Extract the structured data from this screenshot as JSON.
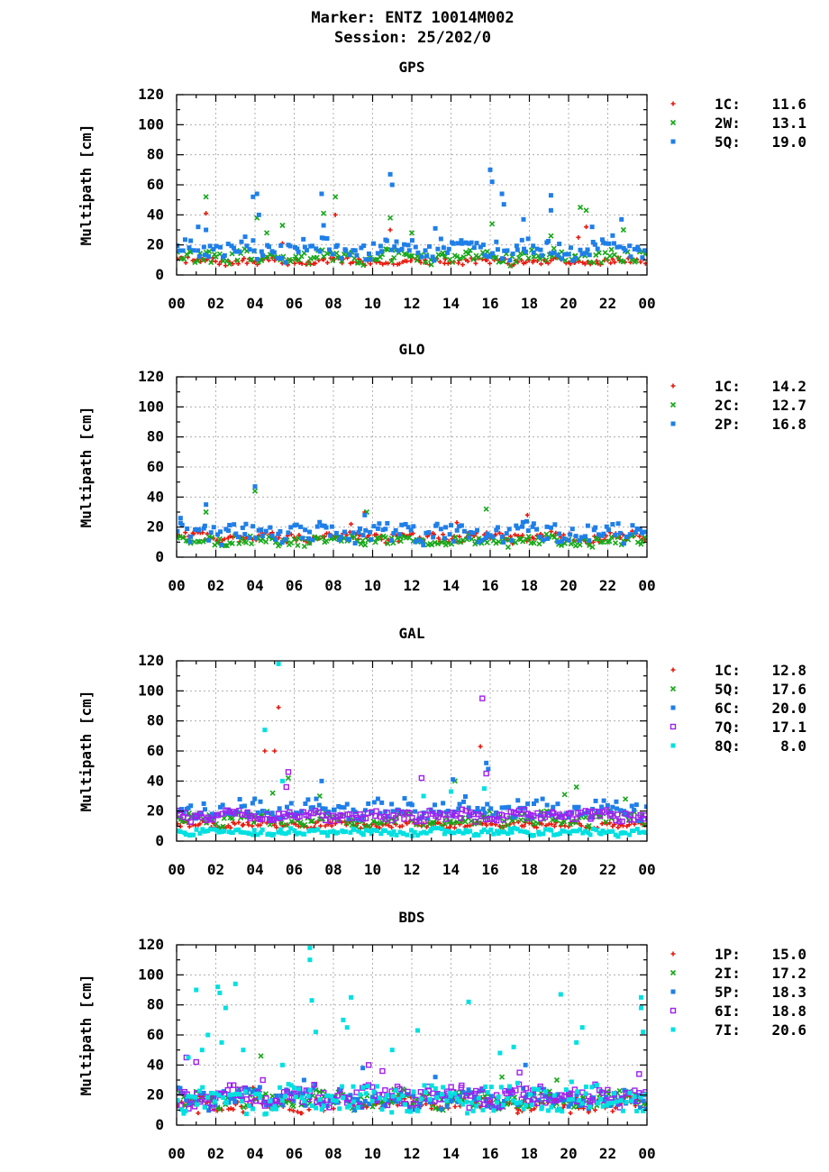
{
  "header": {
    "line1": "Marker: ENTZ 10014M002",
    "line2": "Session: 25/202/0"
  },
  "chart_data": [
    {
      "type": "scatter",
      "title": "GPS",
      "ylabel": "Multipath [cm]",
      "ylim": [
        0,
        120
      ],
      "yticks": [
        "0",
        "20",
        "40",
        "60",
        "80",
        "100",
        "120"
      ],
      "xlim": [
        0,
        24
      ],
      "xticks": [
        "00",
        "02",
        "04",
        "06",
        "08",
        "10",
        "12",
        "14",
        "16",
        "18",
        "20",
        "22",
        "00"
      ],
      "grid": true,
      "legend_position": "right",
      "series": [
        {
          "name": "1C:",
          "value": "11.6",
          "color": "#e8190e",
          "marker": "plus",
          "base": 9,
          "spread": 2,
          "spikes": [
            [
              1.5,
              41
            ],
            [
              8.1,
              40
            ],
            [
              5.4,
              21
            ],
            [
              20.5,
              25
            ],
            [
              20.9,
              32
            ],
            [
              10.9,
              30
            ]
          ]
        },
        {
          "name": "2W:",
          "value": "13.1",
          "color": "#17a81a",
          "marker": "cross",
          "base": 12,
          "spread": 4,
          "spikes": [
            [
              1.5,
              52
            ],
            [
              4.1,
              38
            ],
            [
              4.6,
              28
            ],
            [
              5.4,
              33
            ],
            [
              7.5,
              41
            ],
            [
              8.1,
              52
            ],
            [
              10.9,
              38
            ],
            [
              12.0,
              28
            ],
            [
              16.1,
              34
            ],
            [
              19.1,
              26
            ],
            [
              20.6,
              45
            ],
            [
              20.9,
              43
            ],
            [
              22.8,
              30
            ]
          ]
        },
        {
          "name": "5Q:",
          "value": "19.0",
          "color": "#1f7fe8",
          "marker": "square",
          "base": 17,
          "spread": 6,
          "spikes": [
            [
              1.1,
              32
            ],
            [
              1.5,
              30
            ],
            [
              3.9,
              52
            ],
            [
              4.1,
              54
            ],
            [
              4.2,
              40
            ],
            [
              7.4,
              54
            ],
            [
              7.5,
              33
            ],
            [
              10.9,
              67
            ],
            [
              11.0,
              60
            ],
            [
              13.2,
              31
            ],
            [
              16.0,
              70
            ],
            [
              16.1,
              62
            ],
            [
              16.6,
              54
            ],
            [
              16.7,
              47
            ],
            [
              17.7,
              37
            ],
            [
              19.1,
              53
            ],
            [
              19.1,
              43
            ],
            [
              21.2,
              32
            ],
            [
              22.7,
              37
            ]
          ]
        }
      ]
    },
    {
      "type": "scatter",
      "title": "GLO",
      "ylabel": "Multipath [cm]",
      "ylim": [
        0,
        120
      ],
      "yticks": [
        "0",
        "20",
        "40",
        "60",
        "80",
        "100",
        "120"
      ],
      "xlim": [
        0,
        24
      ],
      "xticks": [
        "00",
        "02",
        "04",
        "06",
        "08",
        "10",
        "12",
        "14",
        "16",
        "18",
        "20",
        "22",
        "00"
      ],
      "grid": true,
      "legend_position": "right",
      "series": [
        {
          "name": "1C:",
          "value": "14.2",
          "color": "#e8190e",
          "marker": "plus",
          "base": 13,
          "spread": 3,
          "spikes": [
            [
              9.6,
              30
            ],
            [
              14.3,
              23
            ],
            [
              17.9,
              28
            ],
            [
              8.9,
              22
            ]
          ]
        },
        {
          "name": "2C:",
          "value": "12.7",
          "color": "#17a81a",
          "marker": "cross",
          "base": 11,
          "spread": 3,
          "spikes": [
            [
              1.5,
              30
            ],
            [
              4.0,
              44
            ],
            [
              9.7,
              30
            ],
            [
              15.8,
              32
            ]
          ]
        },
        {
          "name": "2P:",
          "value": "16.8",
          "color": "#1f7fe8",
          "marker": "square",
          "base": 16,
          "spread": 6,
          "spikes": [
            [
              1.5,
              35
            ],
            [
              4.0,
              47
            ],
            [
              9.6,
              28
            ],
            [
              0.2,
              26
            ]
          ]
        }
      ]
    },
    {
      "type": "scatter",
      "title": "GAL",
      "ylabel": "Multipath [cm]",
      "ylim": [
        0,
        120
      ],
      "yticks": [
        "0",
        "20",
        "40",
        "60",
        "80",
        "100",
        "120"
      ],
      "xlim": [
        0,
        24
      ],
      "xticks": [
        "00",
        "02",
        "04",
        "06",
        "08",
        "10",
        "12",
        "14",
        "16",
        "18",
        "20",
        "22",
        "00"
      ],
      "grid": true,
      "legend_position": "right",
      "series": [
        {
          "name": "1C:",
          "value": "12.8",
          "color": "#e8190e",
          "marker": "plus",
          "base": 11,
          "spread": 2,
          "spikes": [
            [
              4.5,
              60
            ],
            [
              5.0,
              60
            ],
            [
              5.2,
              89
            ],
            [
              15.5,
              63
            ]
          ]
        },
        {
          "name": "5Q:",
          "value": "17.6",
          "color": "#17a81a",
          "marker": "cross",
          "base": 15,
          "spread": 4,
          "spikes": [
            [
              4.9,
              32
            ],
            [
              5.7,
              42
            ],
            [
              7.3,
              30
            ],
            [
              14.2,
              40
            ],
            [
              20.4,
              36
            ],
            [
              22.9,
              28
            ],
            [
              19.8,
              31
            ]
          ]
        },
        {
          "name": "6C:",
          "value": "20.0",
          "color": "#1f7fe8",
          "marker": "square",
          "base": 21,
          "spread": 6,
          "spikes": [
            [
              7.4,
              40
            ],
            [
              14.1,
              41
            ],
            [
              15.8,
              52
            ],
            [
              15.9,
              48
            ]
          ]
        },
        {
          "name": "7Q:",
          "value": "17.1",
          "color": "#a020f0",
          "marker": "open-square",
          "base": 17,
          "spread": 3,
          "spikes": [
            [
              5.7,
              46
            ],
            [
              12.5,
              42
            ],
            [
              15.6,
              95
            ],
            [
              15.8,
              45
            ],
            [
              5.6,
              36
            ]
          ]
        },
        {
          "name": "8Q:",
          "value": "8.0",
          "color": "#00e0e0",
          "marker": "square",
          "base": 6,
          "spread": 2,
          "spikes": [
            [
              5.2,
              118
            ],
            [
              4.5,
              74
            ],
            [
              5.4,
              40
            ],
            [
              12.6,
              30
            ],
            [
              14.0,
              33
            ],
            [
              15.7,
              35
            ]
          ]
        }
      ]
    },
    {
      "type": "scatter",
      "title": "BDS",
      "ylabel": "Multipath [cm]",
      "ylim": [
        0,
        120
      ],
      "yticks": [
        "0",
        "20",
        "40",
        "60",
        "80",
        "100",
        "120"
      ],
      "xlim": [
        0,
        24
      ],
      "xticks": [
        "00",
        "02",
        "04",
        "06",
        "08",
        "10",
        "12",
        "14",
        "16",
        "18",
        "20",
        "22",
        "00"
      ],
      "grid": true,
      "legend_position": "right",
      "series": [
        {
          "name": "1P:",
          "value": "15.0",
          "color": "#e8190e",
          "marker": "plus",
          "base": 14,
          "spread": 4,
          "spikes": [
            [
              1.1,
              8
            ],
            [
              3.9,
              25
            ],
            [
              17.4,
              8
            ],
            [
              20.1,
              8
            ]
          ]
        },
        {
          "name": "2I:",
          "value": "17.2",
          "color": "#17a81a",
          "marker": "cross",
          "base": 17,
          "spread": 5,
          "spikes": [
            [
              4.3,
              46
            ],
            [
              16.6,
              32
            ],
            [
              19.4,
              30
            ],
            [
              3.2,
              24
            ]
          ]
        },
        {
          "name": "5P:",
          "value": "18.3",
          "color": "#1f7fe8",
          "marker": "square",
          "base": 18,
          "spread": 6,
          "spikes": [
            [
              9.5,
              38
            ],
            [
              13.2,
              32
            ],
            [
              17.8,
              40
            ],
            [
              6.5,
              30
            ]
          ]
        },
        {
          "name": "6I:",
          "value": "18.8",
          "color": "#a020f0",
          "marker": "open-square",
          "base": 19,
          "spread": 6,
          "spikes": [
            [
              0.5,
              45
            ],
            [
              1.0,
              42
            ],
            [
              4.4,
              30
            ],
            [
              9.8,
              40
            ],
            [
              10.5,
              36
            ],
            [
              17.5,
              35
            ],
            [
              23.6,
              34
            ]
          ]
        },
        {
          "name": "7I:",
          "value": "20.6",
          "color": "#00e0e0",
          "marker": "square",
          "base": 18,
          "spread": 8,
          "spikes": [
            [
              1.0,
              90
            ],
            [
              2.1,
              92
            ],
            [
              2.2,
              88
            ],
            [
              3.0,
              94
            ],
            [
              2.5,
              78
            ],
            [
              6.8,
              118
            ],
            [
              6.8,
              110
            ],
            [
              6.9,
              83
            ],
            [
              8.9,
              85
            ],
            [
              8.5,
              70
            ],
            [
              8.7,
              65
            ],
            [
              1.6,
              60
            ],
            [
              2.3,
              55
            ],
            [
              12.3,
              63
            ],
            [
              14.9,
              82
            ],
            [
              19.6,
              87
            ],
            [
              20.7,
              65
            ],
            [
              20.4,
              55
            ],
            [
              23.7,
              85
            ],
            [
              23.7,
              78
            ],
            [
              23.8,
              62
            ],
            [
              0.6,
              45
            ],
            [
              1.3,
              50
            ],
            [
              3.4,
              50
            ],
            [
              5.4,
              40
            ],
            [
              7.1,
              62
            ],
            [
              11.0,
              50
            ],
            [
              16.5,
              48
            ],
            [
              17.2,
              52
            ]
          ]
        }
      ]
    }
  ]
}
